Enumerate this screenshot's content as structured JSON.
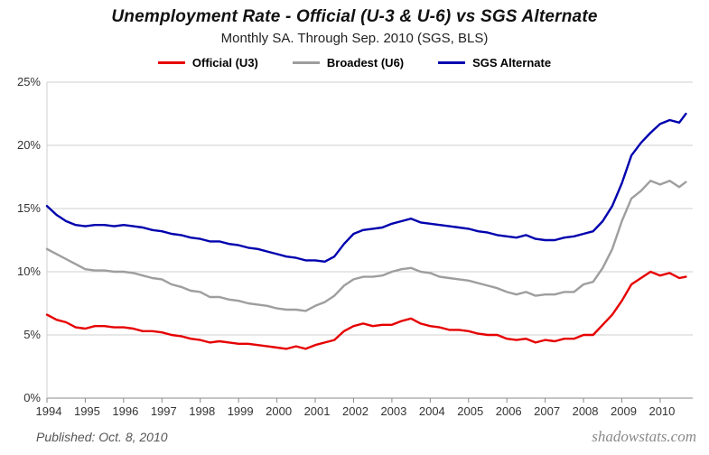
{
  "header": {
    "title": "Unemployment Rate - Official (U-3 & U-6) vs SGS Alternate",
    "subtitle": "Monthly SA. Through Sep. 2010  (SGS, BLS)"
  },
  "footer": {
    "published": "Published: Oct. 8, 2010",
    "site": "shadowstats.com"
  },
  "chart_data": {
    "type": "line",
    "title": "Unemployment Rate - Official (U-3 & U-6) vs SGS Alternate",
    "subtitle": "Monthly SA. Through Sep. 2010 (SGS, BLS)",
    "xlabel": "",
    "ylabel": "",
    "grid": true,
    "legend_position": "top",
    "xlim": [
      1994,
      2010.85
    ],
    "ylim": [
      0,
      25
    ],
    "yticks": [
      {
        "value": 0,
        "label": "0%"
      },
      {
        "value": 5,
        "label": "5%"
      },
      {
        "value": 10,
        "label": "10%"
      },
      {
        "value": 15,
        "label": "15%"
      },
      {
        "value": 20,
        "label": "20%"
      },
      {
        "value": 25,
        "label": "25%"
      }
    ],
    "xticks": [
      {
        "value": 1994,
        "label": "1994"
      },
      {
        "value": 1995,
        "label": "1995"
      },
      {
        "value": 1996,
        "label": "1996"
      },
      {
        "value": 1997,
        "label": "1997"
      },
      {
        "value": 1998,
        "label": "1998"
      },
      {
        "value": 1999,
        "label": "1999"
      },
      {
        "value": 2000,
        "label": "2000"
      },
      {
        "value": 2001,
        "label": "2001"
      },
      {
        "value": 2002,
        "label": "2002"
      },
      {
        "value": 2003,
        "label": "2003"
      },
      {
        "value": 2004,
        "label": "2004"
      },
      {
        "value": 2005,
        "label": "2005"
      },
      {
        "value": 2006,
        "label": "2006"
      },
      {
        "value": 2007,
        "label": "2007"
      },
      {
        "value": 2008,
        "label": "2008"
      },
      {
        "value": 2009,
        "label": "2009"
      },
      {
        "value": 2010,
        "label": "2010"
      }
    ],
    "x": [
      1994,
      1994.25,
      1994.5,
      1994.75,
      1995,
      1995.25,
      1995.5,
      1995.75,
      1996,
      1996.25,
      1996.5,
      1996.75,
      1997,
      1997.25,
      1997.5,
      1997.75,
      1998,
      1998.25,
      1998.5,
      1998.75,
      1999,
      1999.25,
      1999.5,
      1999.75,
      2000,
      2000.25,
      2000.5,
      2000.75,
      2001,
      2001.25,
      2001.5,
      2001.75,
      2002,
      2002.25,
      2002.5,
      2002.75,
      2003,
      2003.25,
      2003.5,
      2003.75,
      2004,
      2004.25,
      2004.5,
      2004.75,
      2005,
      2005.25,
      2005.5,
      2005.75,
      2006,
      2006.25,
      2006.5,
      2006.75,
      2007,
      2007.25,
      2007.5,
      2007.75,
      2008,
      2008.25,
      2008.5,
      2008.75,
      2009,
      2009.25,
      2009.5,
      2009.75,
      2010,
      2010.25,
      2010.5,
      2010.67
    ],
    "series": [
      {
        "id": "u3",
        "name": "Official (U3)",
        "color": "#e60000",
        "values": [
          6.6,
          6.2,
          6.0,
          5.6,
          5.5,
          5.7,
          5.7,
          5.6,
          5.6,
          5.5,
          5.3,
          5.3,
          5.2,
          5.0,
          4.9,
          4.7,
          4.6,
          4.4,
          4.5,
          4.4,
          4.3,
          4.3,
          4.2,
          4.1,
          4.0,
          3.9,
          4.1,
          3.9,
          4.2,
          4.4,
          4.6,
          5.3,
          5.7,
          5.9,
          5.7,
          5.8,
          5.8,
          6.1,
          6.3,
          5.9,
          5.7,
          5.6,
          5.4,
          5.4,
          5.3,
          5.1,
          5.0,
          5.0,
          4.7,
          4.6,
          4.7,
          4.4,
          4.6,
          4.5,
          4.7,
          4.7,
          5.0,
          5.0,
          5.8,
          6.6,
          7.7,
          9.0,
          9.5,
          10.0,
          9.7,
          9.9,
          9.5,
          9.6
        ]
      },
      {
        "id": "u6",
        "name": "Broadest (U6)",
        "color": "#9e9e9e",
        "values": [
          11.8,
          11.4,
          11.0,
          10.6,
          10.2,
          10.1,
          10.1,
          10.0,
          10.0,
          9.9,
          9.7,
          9.5,
          9.4,
          9.0,
          8.8,
          8.5,
          8.4,
          8.0,
          8.0,
          7.8,
          7.7,
          7.5,
          7.4,
          7.3,
          7.1,
          7.0,
          7.0,
          6.9,
          7.3,
          7.6,
          8.1,
          8.9,
          9.4,
          9.6,
          9.6,
          9.7,
          10.0,
          10.2,
          10.3,
          10.0,
          9.9,
          9.6,
          9.5,
          9.4,
          9.3,
          9.1,
          8.9,
          8.7,
          8.4,
          8.2,
          8.4,
          8.1,
          8.2,
          8.2,
          8.4,
          8.4,
          9.0,
          9.2,
          10.3,
          11.8,
          14.0,
          15.8,
          16.4,
          17.2,
          16.9,
          17.2,
          16.7,
          17.1
        ]
      },
      {
        "id": "sgs",
        "name": "SGS Alternate",
        "color": "#0000ae",
        "values": [
          15.2,
          14.5,
          14.0,
          13.7,
          13.6,
          13.7,
          13.7,
          13.6,
          13.7,
          13.6,
          13.5,
          13.3,
          13.2,
          13.0,
          12.9,
          12.7,
          12.6,
          12.4,
          12.4,
          12.2,
          12.1,
          11.9,
          11.8,
          11.6,
          11.4,
          11.2,
          11.1,
          10.9,
          10.9,
          10.8,
          11.2,
          12.2,
          13.0,
          13.3,
          13.4,
          13.5,
          13.8,
          14.0,
          14.2,
          13.9,
          13.8,
          13.7,
          13.6,
          13.5,
          13.4,
          13.2,
          13.1,
          12.9,
          12.8,
          12.7,
          12.9,
          12.6,
          12.5,
          12.5,
          12.7,
          12.8,
          13.0,
          13.2,
          14.0,
          15.2,
          17.0,
          19.2,
          20.2,
          21.0,
          21.7,
          22.0,
          21.8,
          22.5
        ]
      }
    ]
  }
}
